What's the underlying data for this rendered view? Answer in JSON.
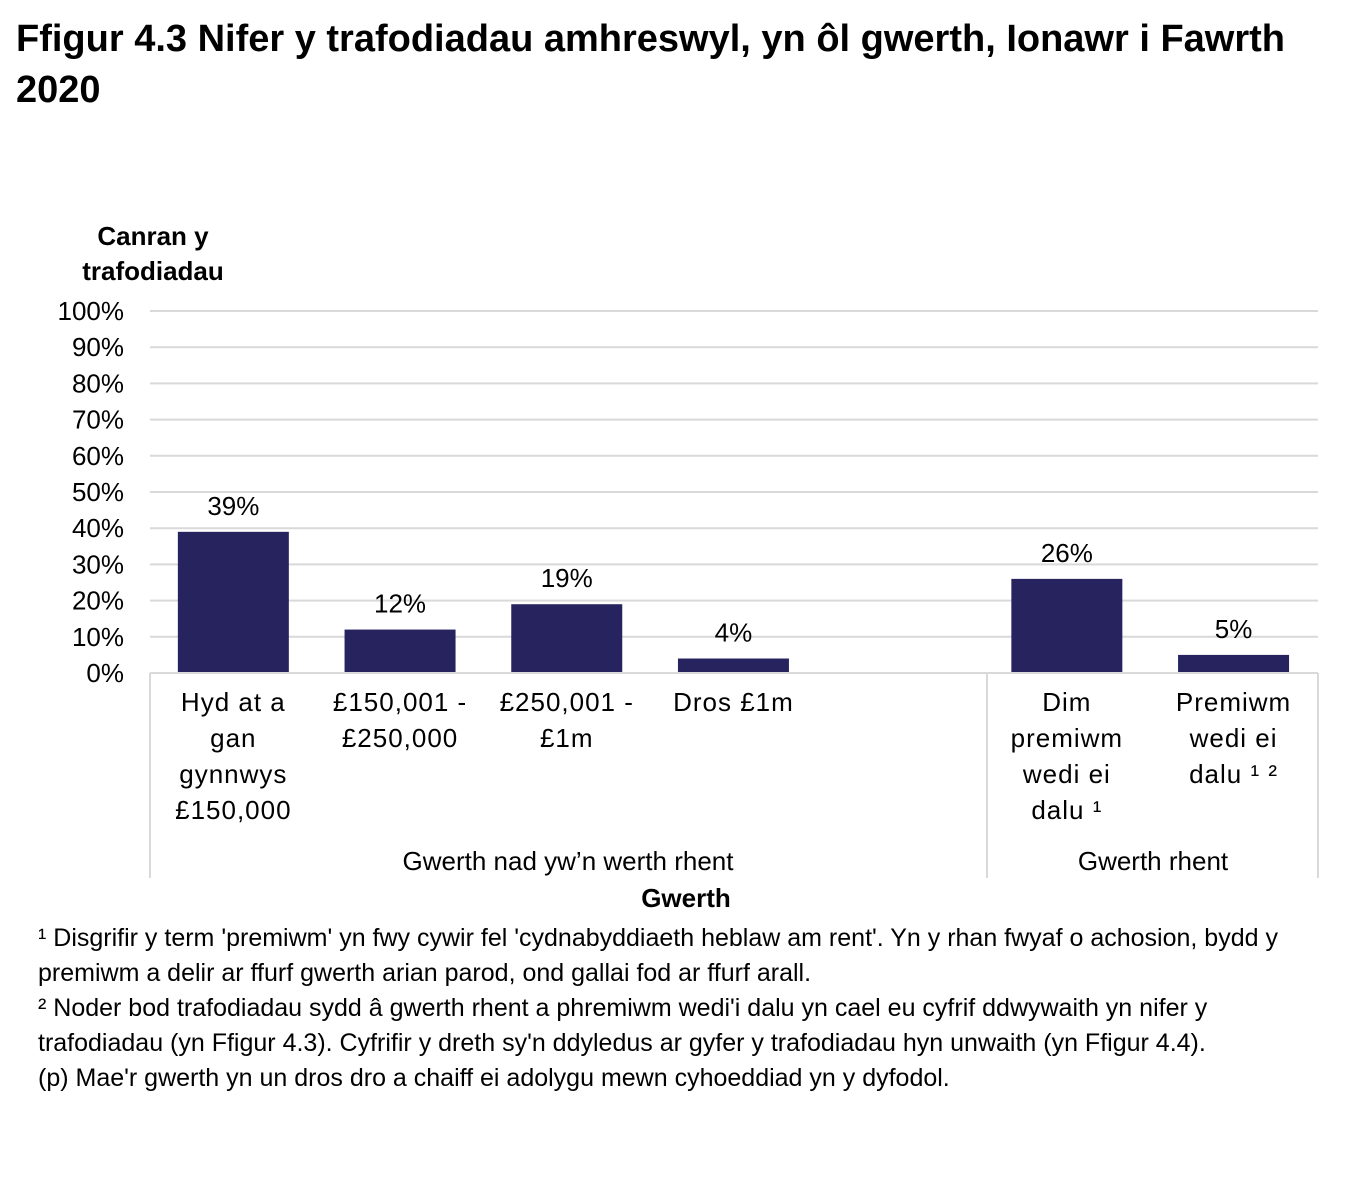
{
  "title": "Ffigur 4.3  Nifer y trafodiadau amhreswyl, yn ôl gwerth, Ionawr i Fawrth 2020",
  "chart_data": {
    "type": "bar",
    "ylabel": [
      "Canran y",
      "trafodiadau"
    ],
    "xlabel": "Gwerth",
    "ylim": [
      0,
      100
    ],
    "yticks": [
      "0%",
      "10%",
      "20%",
      "30%",
      "40%",
      "50%",
      "60%",
      "70%",
      "80%",
      "90%",
      "100%"
    ],
    "grid": true,
    "bar_color": "#27235f",
    "groups": [
      {
        "label": "Gwerth nad yw’n werth rhent",
        "categories": [
          [
            "Hyd at a",
            "gan",
            "gynnwys",
            "£150,000"
          ],
          [
            "£150,001 -",
            "£250,000"
          ],
          [
            "£250,001 -",
            "£1m"
          ],
          [
            "Dros £1m"
          ]
        ],
        "values": [
          39,
          12,
          19,
          4
        ],
        "data_labels": [
          "39%",
          "12%",
          "19%",
          "4%"
        ]
      },
      {
        "label": "Gwerth rhent",
        "categories": [
          [
            "Dim",
            "premiwm",
            "wedi ei",
            "dalu ¹"
          ],
          [
            "Premiwm",
            "wedi ei",
            "dalu ¹ ²"
          ]
        ],
        "values": [
          26,
          5
        ],
        "data_labels": [
          "26%",
          "5%"
        ]
      }
    ]
  },
  "footnotes": [
    "¹ Disgrifir y term 'premiwm' yn fwy cywir fel 'cydnabyddiaeth heblaw am rent'. Yn y rhan fwyaf o achosion, bydd y premiwm a delir ar ffurf gwerth arian parod, ond gallai fod ar ffurf arall.",
    "² Noder bod trafodiadau sydd â gwerth rhent a phremiwm wedi'i dalu yn cael eu cyfrif ddwywaith yn nifer y trafodiadau (yn Ffigur 4.3). Cyfrifir y dreth sy'n ddyledus ar gyfer y trafodiadau hyn unwaith (yn Ffigur 4.4).",
    "(p) Mae'r gwerth yn un dros dro a chaiff ei adolygu mewn cyhoeddiad yn y dyfodol."
  ]
}
